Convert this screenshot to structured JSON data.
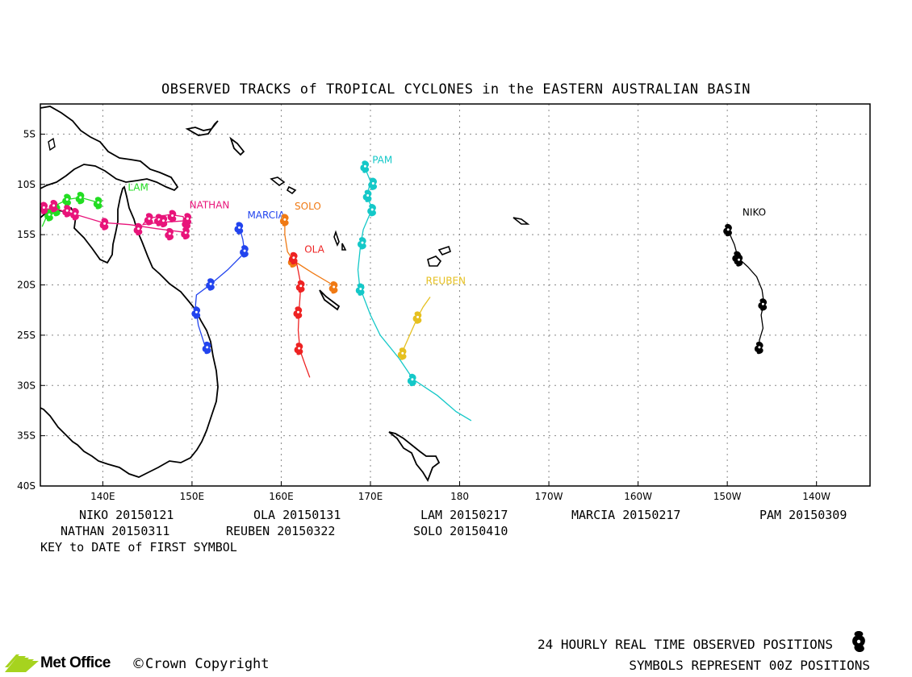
{
  "title": "OBSERVED TRACKS of TROPICAL CYCLONES in the EASTERN AUSTRALIAN BASIN",
  "map": {
    "lon_range": [
      133,
      226
    ],
    "lat_range": [
      -40,
      -2
    ],
    "lat_ticks": [
      {
        "lat": -5,
        "label": "5S"
      },
      {
        "lat": -10,
        "label": "10S"
      },
      {
        "lat": -15,
        "label": "15S"
      },
      {
        "lat": -20,
        "label": "20S"
      },
      {
        "lat": -25,
        "label": "25S"
      },
      {
        "lat": -30,
        "label": "30S"
      },
      {
        "lat": -35,
        "label": "35S"
      },
      {
        "lat": -40,
        "label": "40S"
      }
    ],
    "lon_ticks": [
      {
        "lon": 140,
        "label": "140E"
      },
      {
        "lon": 150,
        "label": "150E"
      },
      {
        "lon": 160,
        "label": "160E"
      },
      {
        "lon": 170,
        "label": "170E"
      },
      {
        "lon": 180,
        "label": "180"
      },
      {
        "lon": 190,
        "label": "170W"
      },
      {
        "lon": 200,
        "label": "160W"
      },
      {
        "lon": 210,
        "label": "150W"
      },
      {
        "lon": 220,
        "label": "140W"
      }
    ],
    "grid": true
  },
  "storms": [
    {
      "name": "LAM",
      "color": "#22dd22",
      "label_at": [
        142.8,
        -10.6
      ],
      "track": [
        [
          139.5,
          -11.8
        ],
        [
          137.5,
          -11.3
        ],
        [
          136,
          -11.5
        ],
        [
          134.5,
          -12.2
        ],
        [
          133.8,
          -13
        ],
        [
          133.2,
          -14.2
        ]
      ],
      "positions": [
        [
          139.5,
          -11.8
        ],
        [
          137.5,
          -11.3
        ],
        [
          136,
          -11.5
        ],
        [
          134.8,
          -12.5
        ],
        [
          134,
          -13
        ]
      ]
    },
    {
      "name": "NATHAN",
      "color": "#e8147a",
      "label_at": [
        149.7,
        -12.4
      ],
      "track": [
        [
          133.2,
          -12.4
        ],
        [
          135,
          -12.5
        ],
        [
          137,
          -13
        ],
        [
          140,
          -13.8
        ],
        [
          143,
          -14
        ],
        [
          146,
          -14.4
        ],
        [
          149.5,
          -14.8
        ],
        [
          149,
          -13.2
        ],
        [
          147.5,
          -13
        ],
        [
          145,
          -13.4
        ],
        [
          144.5,
          -14
        ],
        [
          146.2,
          -13.8
        ],
        [
          149.6,
          -13.6
        ]
      ],
      "positions": [
        [
          133.4,
          -12.3
        ],
        [
          134.5,
          -12.1
        ],
        [
          136,
          -12.6
        ],
        [
          136.9,
          -12.9
        ],
        [
          140.2,
          -13.9
        ],
        [
          144,
          -14.4
        ],
        [
          145.2,
          -13.4
        ],
        [
          146.3,
          -13.5
        ],
        [
          147.8,
          -13.1
        ],
        [
          149.4,
          -13.8
        ],
        [
          149.3,
          -14.8
        ],
        [
          147.5,
          -14.9
        ],
        [
          146.8,
          -13.6
        ],
        [
          149.5,
          -13.4
        ]
      ]
    },
    {
      "name": "MARCIA",
      "color": "#2244ee",
      "label_at": [
        156.2,
        -13.4
      ],
      "track": [
        [
          155.3,
          -14.2
        ],
        [
          155.7,
          -15.5
        ],
        [
          155.9,
          -16.8
        ],
        [
          154,
          -18.5
        ],
        [
          152,
          -20
        ],
        [
          150.5,
          -21
        ],
        [
          150.4,
          -22
        ],
        [
          150.7,
          -24
        ],
        [
          151.5,
          -26.2
        ]
      ],
      "positions": [
        [
          155.3,
          -14.3
        ],
        [
          155.9,
          -16.6
        ],
        [
          152.1,
          -19.9
        ],
        [
          150.5,
          -22.7
        ],
        [
          151.7,
          -26.2
        ]
      ]
    },
    {
      "name": "SOLO",
      "color": "#f07a14",
      "label_at": [
        161.5,
        -12.5
      ],
      "track": [
        [
          160.4,
          -13.5
        ],
        [
          160.4,
          -15
        ],
        [
          160.7,
          -16.7
        ],
        [
          161.4,
          -17.6
        ],
        [
          163.5,
          -18.8
        ],
        [
          165.4,
          -19.8
        ],
        [
          166,
          -20.3
        ]
      ],
      "positions": [
        [
          160.4,
          -13.5
        ],
        [
          161.3,
          -17.6
        ],
        [
          165.9,
          -20.2
        ]
      ]
    },
    {
      "name": "OLA",
      "color": "#ee2222",
      "label_at": [
        162.6,
        -16.8
      ],
      "track": [
        [
          161.6,
          -17.3
        ],
        [
          161.9,
          -18.6
        ],
        [
          162.2,
          -20
        ],
        [
          162,
          -22.5
        ],
        [
          161.9,
          -24.5
        ],
        [
          162.1,
          -26.5
        ],
        [
          162.7,
          -28
        ],
        [
          163.2,
          -29.2
        ]
      ],
      "positions": [
        [
          161.4,
          -17.3
        ],
        [
          162.2,
          -20.1
        ],
        [
          161.9,
          -22.7
        ],
        [
          162,
          -26.3
        ]
      ]
    },
    {
      "name": "PAM",
      "color": "#14c8c8",
      "label_at": [
        170.2,
        -7.9
      ],
      "track": [
        [
          169.4,
          -8.4
        ],
        [
          170,
          -9.7
        ],
        [
          169.6,
          -11.2
        ],
        [
          170.2,
          -12.4
        ],
        [
          169.2,
          -14.5
        ],
        [
          168.9,
          -16
        ],
        [
          168.6,
          -18.5
        ],
        [
          168.8,
          -20.2
        ],
        [
          170,
          -23
        ],
        [
          171.1,
          -25
        ],
        [
          173.2,
          -27.3
        ],
        [
          174.8,
          -29.4
        ],
        [
          177.5,
          -31
        ],
        [
          179.6,
          -32.6
        ],
        [
          181.3,
          -33.5
        ]
      ],
      "positions": [
        [
          169.4,
          -8.2
        ],
        [
          170.3,
          -9.9
        ],
        [
          169.7,
          -11.1
        ],
        [
          170.2,
          -12.5
        ],
        [
          169.1,
          -15.8
        ],
        [
          168.9,
          -20.4
        ],
        [
          174.7,
          -29.4
        ]
      ]
    },
    {
      "name": "REUBEN",
      "color": "#e6c020",
      "label_at": [
        176.2,
        -19.9
      ],
      "track": [
        [
          176.7,
          -21.2
        ],
        [
          175.9,
          -22.2
        ],
        [
          175.3,
          -23.2
        ],
        [
          174.4,
          -25
        ],
        [
          173.5,
          -26.8
        ]
      ],
      "positions": [
        [
          175.3,
          -23.2
        ],
        [
          173.6,
          -26.8
        ]
      ]
    },
    {
      "name": "NIKO",
      "color": "#000000",
      "label_at": [
        211.7,
        -13.1
      ],
      "track": [
        [
          210.3,
          -14.1
        ],
        [
          210.2,
          -14.8
        ],
        [
          210.8,
          -16
        ],
        [
          211.2,
          -17.3
        ],
        [
          212.3,
          -18.2
        ],
        [
          213.3,
          -19.2
        ],
        [
          213.9,
          -20.5
        ],
        [
          214.1,
          -21.8
        ],
        [
          213.8,
          -23
        ],
        [
          214,
          -24.3
        ],
        [
          213.6,
          -25.5
        ],
        [
          213.6,
          -26.3
        ]
      ],
      "positions": [
        [
          210.1,
          -14.5
        ],
        [
          211.1,
          -17.2
        ],
        [
          211.3,
          -17.5
        ],
        [
          214,
          -21.9
        ],
        [
          213.6,
          -26.2
        ]
      ]
    }
  ],
  "legend": {
    "rows": [
      [
        "NIKO 20150121",
        "OLA 20150131",
        "LAM 20150217",
        "MARCIA 20150217",
        "PAM 20150309"
      ],
      [
        "NATHAN 20150311",
        "REUBEN 20150322",
        "SOLO 20150410"
      ]
    ],
    "key_note": "KEY to DATE of FIRST SYMBOL"
  },
  "footer": {
    "line1": "24 HOURLY REAL TIME OBSERVED POSITIONS",
    "line2": "SYMBOLS REPRESENT 00Z POSITIONS",
    "logo_text": "Met Office",
    "copyright_symbol": "©",
    "copyright_text": "Crown Copyright"
  },
  "colors": {
    "frame": "#000000",
    "grid": "#888888",
    "logo_green": "#a6d31e"
  }
}
